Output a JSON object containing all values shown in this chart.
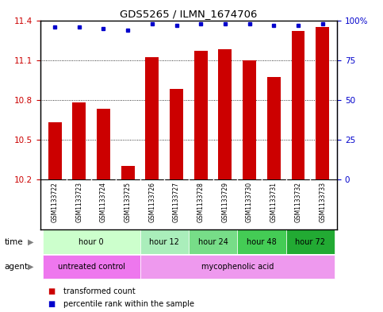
{
  "title": "GDS5265 / ILMN_1674706",
  "samples": [
    "GSM1133722",
    "GSM1133723",
    "GSM1133724",
    "GSM1133725",
    "GSM1133726",
    "GSM1133727",
    "GSM1133728",
    "GSM1133729",
    "GSM1133730",
    "GSM1133731",
    "GSM1133732",
    "GSM1133733"
  ],
  "bar_values": [
    10.63,
    10.78,
    10.73,
    10.3,
    11.12,
    10.88,
    11.17,
    11.18,
    11.1,
    10.97,
    11.32,
    11.35
  ],
  "percentile_values": [
    96,
    96,
    95,
    94,
    98,
    97,
    98,
    98,
    98,
    97,
    97,
    98
  ],
  "bar_color": "#cc0000",
  "dot_color": "#0000cc",
  "ylim_left": [
    10.2,
    11.4
  ],
  "ylim_right": [
    0,
    100
  ],
  "yticks_left": [
    10.2,
    10.5,
    10.8,
    11.1,
    11.4
  ],
  "yticks_right": [
    0,
    25,
    50,
    75,
    100
  ],
  "yticklabels_right": [
    "0",
    "25",
    "50",
    "75",
    "100%"
  ],
  "time_groups": [
    {
      "label": "hour 0",
      "start": 0,
      "end": 4,
      "color": "#ccffcc"
    },
    {
      "label": "hour 12",
      "start": 4,
      "end": 6,
      "color": "#aaeebb"
    },
    {
      "label": "hour 24",
      "start": 6,
      "end": 8,
      "color": "#77dd88"
    },
    {
      "label": "hour 48",
      "start": 8,
      "end": 10,
      "color": "#44cc55"
    },
    {
      "label": "hour 72",
      "start": 10,
      "end": 12,
      "color": "#22aa33"
    }
  ],
  "agent_groups": [
    {
      "label": "untreated control",
      "start": 0,
      "end": 4,
      "color": "#ee77ee"
    },
    {
      "label": "mycophenolic acid",
      "start": 4,
      "end": 12,
      "color": "#ee99ee"
    }
  ],
  "legend_items": [
    {
      "label": "transformed count",
      "color": "#cc0000"
    },
    {
      "label": "percentile rank within the sample",
      "color": "#0000cc"
    }
  ],
  "bar_width": 0.55,
  "background_color": "#ffffff",
  "plot_bg_color": "#ffffff",
  "sample_bg_color": "#cccccc",
  "border_color": "#000000"
}
